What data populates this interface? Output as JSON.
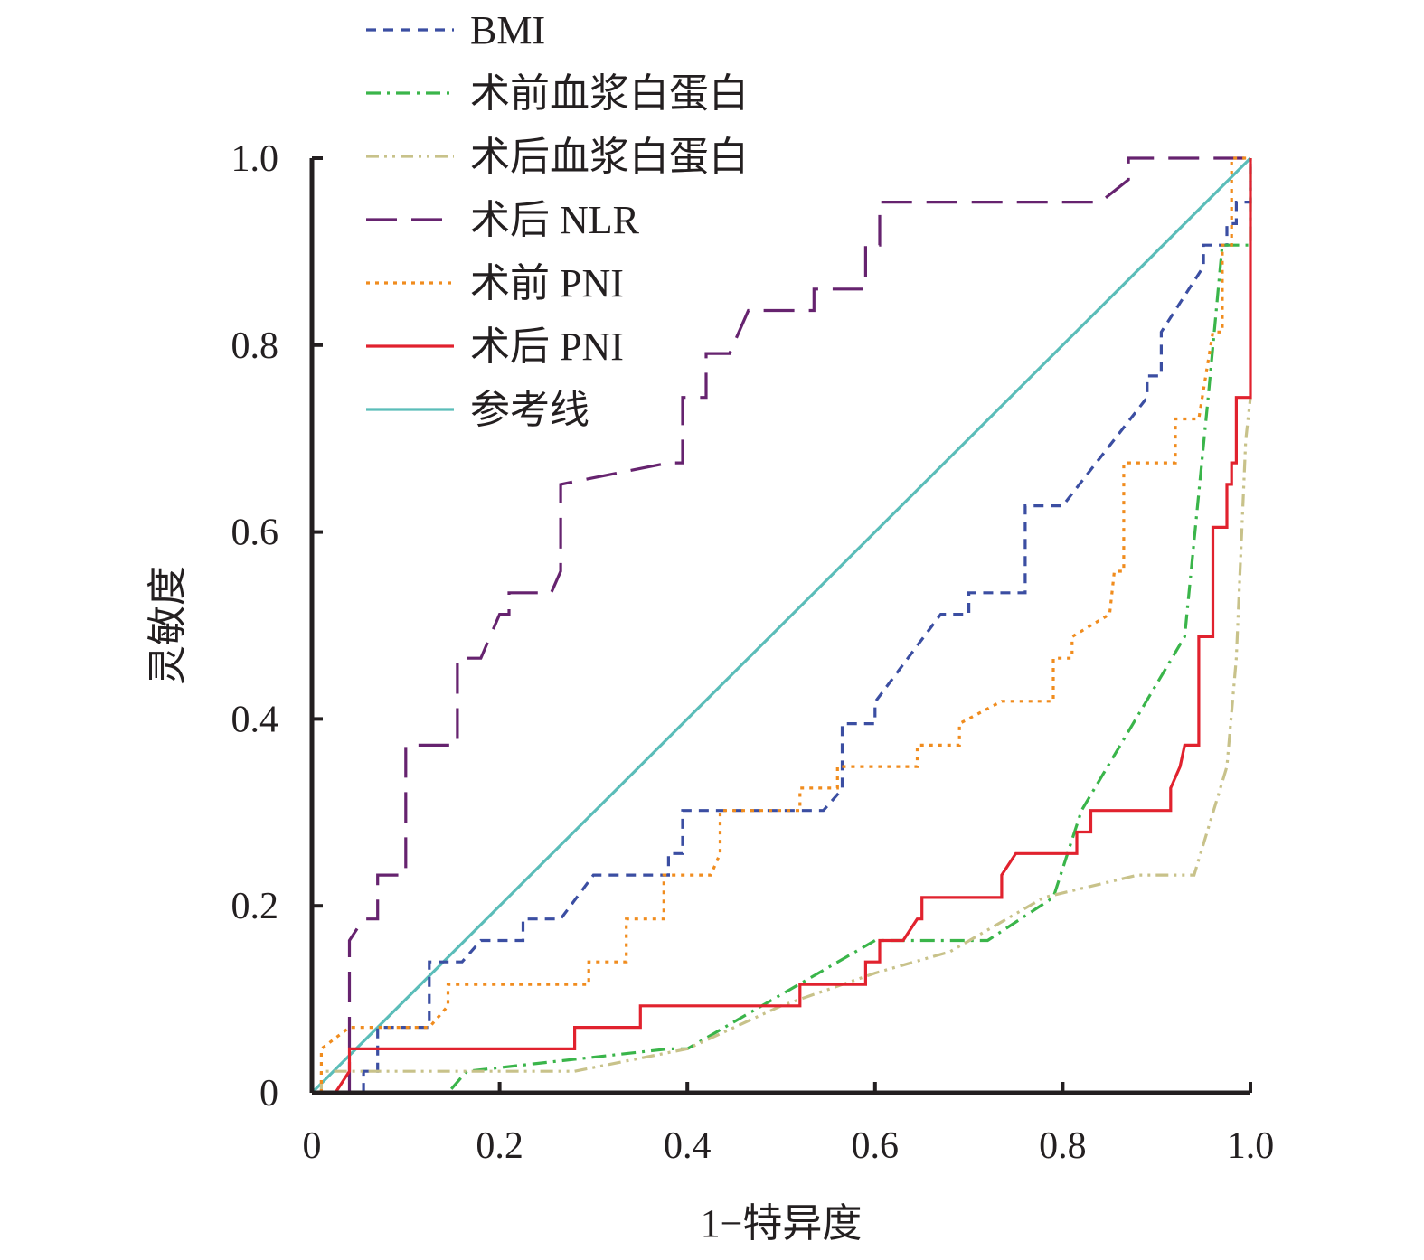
{
  "chart_data": {
    "type": "line",
    "title": "",
    "xlabel": "1−特异度",
    "ylabel": "灵敏度",
    "xlim": [
      0,
      1
    ],
    "ylim": [
      0,
      1
    ],
    "x_ticks": [
      "0",
      "0.2",
      "0.4",
      "0.6",
      "0.8",
      "1.0"
    ],
    "y_ticks": [
      "0",
      "0.2",
      "0.4",
      "0.6",
      "0.8",
      "1.0"
    ],
    "grid": false,
    "legend_position": "top-left",
    "series": [
      {
        "name": "BMI",
        "color": "#3b4ea2",
        "dash": "dash-short",
        "points": [
          [
            0,
            0
          ],
          [
            0.055,
            0
          ],
          [
            0.055,
            0.023
          ],
          [
            0.07,
            0.023
          ],
          [
            0.07,
            0.07
          ],
          [
            0.125,
            0.07
          ],
          [
            0.125,
            0.14
          ],
          [
            0.16,
            0.14
          ],
          [
            0.18,
            0.163
          ],
          [
            0.225,
            0.163
          ],
          [
            0.225,
            0.186
          ],
          [
            0.265,
            0.186
          ],
          [
            0.3,
            0.233
          ],
          [
            0.38,
            0.233
          ],
          [
            0.38,
            0.256
          ],
          [
            0.395,
            0.256
          ],
          [
            0.395,
            0.302
          ],
          [
            0.545,
            0.302
          ],
          [
            0.565,
            0.325
          ],
          [
            0.565,
            0.395
          ],
          [
            0.6,
            0.395
          ],
          [
            0.6,
            0.418
          ],
          [
            0.67,
            0.512
          ],
          [
            0.7,
            0.512
          ],
          [
            0.7,
            0.535
          ],
          [
            0.76,
            0.535
          ],
          [
            0.76,
            0.628
          ],
          [
            0.8,
            0.628
          ],
          [
            0.89,
            0.744
          ],
          [
            0.89,
            0.767
          ],
          [
            0.905,
            0.767
          ],
          [
            0.905,
            0.814
          ],
          [
            0.95,
            0.884
          ],
          [
            0.95,
            0.907
          ],
          [
            0.975,
            0.907
          ],
          [
            0.975,
            0.93
          ],
          [
            0.985,
            0.93
          ],
          [
            0.985,
            0.953
          ],
          [
            1,
            0.953
          ],
          [
            1,
            1
          ]
        ]
      },
      {
        "name": "术前血浆白蛋白",
        "color": "#3ab54a",
        "dash": "dash-dot",
        "points": [
          [
            0.055,
            0
          ],
          [
            0.145,
            0
          ],
          [
            0.165,
            0.023
          ],
          [
            0.38,
            0.047
          ],
          [
            0.4,
            0.047
          ],
          [
            0.6,
            0.163
          ],
          [
            0.72,
            0.163
          ],
          [
            0.79,
            0.209
          ],
          [
            0.82,
            0.302
          ],
          [
            0.93,
            0.488
          ],
          [
            0.955,
            0.744
          ],
          [
            0.97,
            0.907
          ],
          [
            1,
            0.907
          ],
          [
            1,
            1
          ]
        ]
      },
      {
        "name": "术后血浆白蛋白",
        "color": "#c8c28a",
        "dash": "dash-dot-dot",
        "points": [
          [
            0.01,
            0
          ],
          [
            0.01,
            0.023
          ],
          [
            0.28,
            0.023
          ],
          [
            0.4,
            0.047
          ],
          [
            0.5,
            0.093
          ],
          [
            0.6,
            0.128
          ],
          [
            0.68,
            0.151
          ],
          [
            0.78,
            0.209
          ],
          [
            0.88,
            0.233
          ],
          [
            0.94,
            0.233
          ],
          [
            0.975,
            0.349
          ],
          [
            0.985,
            0.465
          ],
          [
            0.995,
            0.698
          ],
          [
            1,
            0.744
          ]
        ]
      },
      {
        "name": "术后 NLR",
        "color": "#66236f",
        "dash": "dash-long",
        "points": [
          [
            0.04,
            0
          ],
          [
            0.04,
            0.163
          ],
          [
            0.055,
            0.186
          ],
          [
            0.07,
            0.186
          ],
          [
            0.07,
            0.233
          ],
          [
            0.1,
            0.233
          ],
          [
            0.1,
            0.372
          ],
          [
            0.155,
            0.372
          ],
          [
            0.155,
            0.465
          ],
          [
            0.18,
            0.465
          ],
          [
            0.2,
            0.512
          ],
          [
            0.21,
            0.512
          ],
          [
            0.21,
            0.535
          ],
          [
            0.255,
            0.535
          ],
          [
            0.265,
            0.558
          ],
          [
            0.265,
            0.651
          ],
          [
            0.38,
            0.674
          ],
          [
            0.395,
            0.674
          ],
          [
            0.395,
            0.744
          ],
          [
            0.42,
            0.744
          ],
          [
            0.42,
            0.791
          ],
          [
            0.445,
            0.791
          ],
          [
            0.465,
            0.837
          ],
          [
            0.535,
            0.837
          ],
          [
            0.535,
            0.86
          ],
          [
            0.59,
            0.86
          ],
          [
            0.59,
            0.907
          ],
          [
            0.605,
            0.907
          ],
          [
            0.605,
            0.953
          ],
          [
            0.84,
            0.953
          ],
          [
            0.87,
            0.977
          ],
          [
            0.87,
            1
          ],
          [
            1,
            1
          ]
        ]
      },
      {
        "name": "术前 PNI",
        "color": "#f08c1e",
        "dash": "dot",
        "points": [
          [
            0.01,
            0
          ],
          [
            0.01,
            0.047
          ],
          [
            0.04,
            0.07
          ],
          [
            0.125,
            0.07
          ],
          [
            0.145,
            0.093
          ],
          [
            0.145,
            0.116
          ],
          [
            0.295,
            0.116
          ],
          [
            0.295,
            0.14
          ],
          [
            0.335,
            0.14
          ],
          [
            0.335,
            0.186
          ],
          [
            0.375,
            0.186
          ],
          [
            0.375,
            0.233
          ],
          [
            0.425,
            0.233
          ],
          [
            0.435,
            0.256
          ],
          [
            0.435,
            0.302
          ],
          [
            0.52,
            0.302
          ],
          [
            0.52,
            0.326
          ],
          [
            0.56,
            0.326
          ],
          [
            0.56,
            0.349
          ],
          [
            0.645,
            0.349
          ],
          [
            0.645,
            0.372
          ],
          [
            0.69,
            0.372
          ],
          [
            0.69,
            0.395
          ],
          [
            0.735,
            0.419
          ],
          [
            0.79,
            0.419
          ],
          [
            0.79,
            0.465
          ],
          [
            0.81,
            0.465
          ],
          [
            0.81,
            0.488
          ],
          [
            0.85,
            0.512
          ],
          [
            0.855,
            0.558
          ],
          [
            0.865,
            0.558
          ],
          [
            0.865,
            0.674
          ],
          [
            0.92,
            0.674
          ],
          [
            0.92,
            0.721
          ],
          [
            0.945,
            0.721
          ],
          [
            0.96,
            0.814
          ],
          [
            0.97,
            0.814
          ],
          [
            0.97,
            0.907
          ],
          [
            0.98,
            0.907
          ],
          [
            0.98,
            1
          ],
          [
            1,
            1
          ]
        ]
      },
      {
        "name": "术后 PNI",
        "color": "#e1222e",
        "dash": "solid",
        "points": [
          [
            0,
            0
          ],
          [
            0.025,
            0
          ],
          [
            0.04,
            0.023
          ],
          [
            0.04,
            0.047
          ],
          [
            0.28,
            0.047
          ],
          [
            0.28,
            0.07
          ],
          [
            0.35,
            0.07
          ],
          [
            0.35,
            0.093
          ],
          [
            0.52,
            0.093
          ],
          [
            0.52,
            0.116
          ],
          [
            0.59,
            0.116
          ],
          [
            0.59,
            0.14
          ],
          [
            0.605,
            0.14
          ],
          [
            0.605,
            0.163
          ],
          [
            0.63,
            0.163
          ],
          [
            0.645,
            0.186
          ],
          [
            0.65,
            0.186
          ],
          [
            0.65,
            0.209
          ],
          [
            0.735,
            0.209
          ],
          [
            0.735,
            0.233
          ],
          [
            0.75,
            0.256
          ],
          [
            0.815,
            0.256
          ],
          [
            0.815,
            0.279
          ],
          [
            0.83,
            0.279
          ],
          [
            0.83,
            0.302
          ],
          [
            0.915,
            0.302
          ],
          [
            0.915,
            0.326
          ],
          [
            0.925,
            0.349
          ],
          [
            0.93,
            0.372
          ],
          [
            0.945,
            0.372
          ],
          [
            0.945,
            0.488
          ],
          [
            0.96,
            0.488
          ],
          [
            0.96,
            0.605
          ],
          [
            0.975,
            0.605
          ],
          [
            0.975,
            0.651
          ],
          [
            0.98,
            0.651
          ],
          [
            0.98,
            0.674
          ],
          [
            0.985,
            0.674
          ],
          [
            0.985,
            0.744
          ],
          [
            1,
            0.744
          ],
          [
            1,
            1
          ]
        ]
      },
      {
        "name": "参考线",
        "color": "#5bbdb9",
        "dash": "solid",
        "points": [
          [
            0,
            0
          ],
          [
            1,
            1
          ]
        ]
      }
    ]
  }
}
